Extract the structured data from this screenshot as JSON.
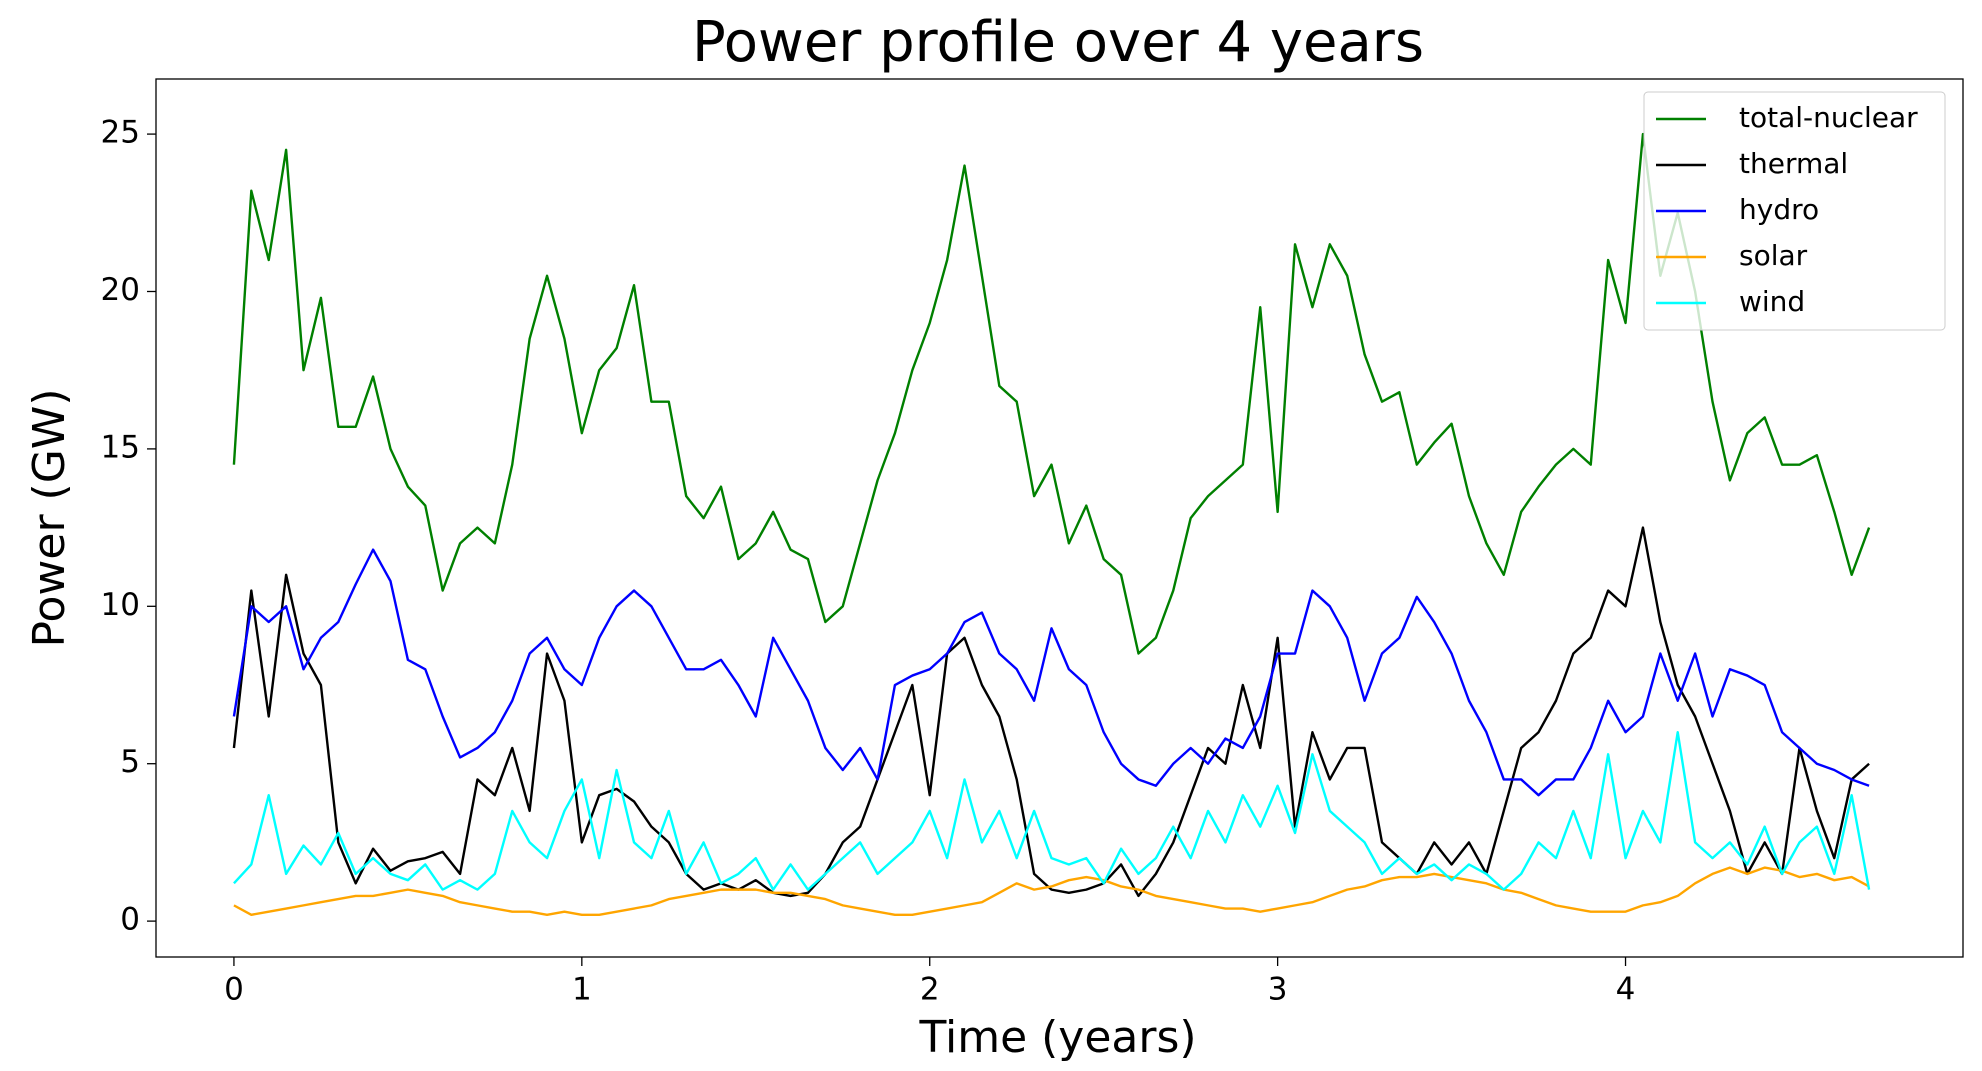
{
  "chart_data": {
    "type": "line",
    "title": "Power profile over 4 years",
    "xlabel": "Time (years)",
    "ylabel": "Power (GW)",
    "xlim": [
      -0.224,
      4.97
    ],
    "ylim": [
      -1.14,
      26.75
    ],
    "xticks": [
      0,
      1,
      2,
      3,
      4
    ],
    "yticks": [
      0,
      5,
      10,
      15,
      20,
      25
    ],
    "legend": "upper right",
    "x": [
      0,
      0.05,
      0.1,
      0.15,
      0.2,
      0.25,
      0.3,
      0.35,
      0.4,
      0.45,
      0.5,
      0.55,
      0.6,
      0.65,
      0.7,
      0.75,
      0.8,
      0.85,
      0.9,
      0.95,
      1,
      1.05,
      1.1,
      1.15,
      1.2,
      1.25,
      1.3,
      1.35,
      1.4,
      1.45,
      1.5,
      1.55,
      1.6,
      1.65,
      1.7,
      1.75,
      1.8,
      1.85,
      1.9,
      1.95,
      2,
      2.05,
      2.1,
      2.15,
      2.2,
      2.25,
      2.3,
      2.35,
      2.4,
      2.45,
      2.5,
      2.55,
      2.6,
      2.65,
      2.7,
      2.75,
      2.8,
      2.85,
      2.9,
      2.95,
      3,
      3.05,
      3.1,
      3.15,
      3.2,
      3.25,
      3.3,
      3.35,
      3.4,
      3.45,
      3.5,
      3.55,
      3.6,
      3.65,
      3.7,
      3.75,
      3.8,
      3.85,
      3.9,
      3.95,
      4,
      4.05,
      4.1,
      4.15,
      4.2,
      4.25,
      4.3,
      4.35,
      4.4,
      4.45,
      4.5,
      4.55,
      4.6,
      4.65,
      4.7
    ],
    "series": [
      {
        "name": "total-nuclear",
        "color": "#008000",
        "values": [
          14.5,
          23.2,
          21,
          24.5,
          17.5,
          19.8,
          15.7,
          15.7,
          17.3,
          15,
          13.8,
          13.2,
          10.5,
          12,
          12.5,
          12,
          14.5,
          18.5,
          20.5,
          18.5,
          15.5,
          17.5,
          18.2,
          20.2,
          16.5,
          16.5,
          13.5,
          12.8,
          13.8,
          11.5,
          12,
          13,
          11.8,
          11.5,
          9.5,
          10,
          12,
          14,
          15.5,
          17.5,
          19,
          21,
          24,
          20.5,
          17,
          16.5,
          13.5,
          14.5,
          12,
          13.2,
          11.5,
          11,
          8.5,
          9,
          10.5,
          12.8,
          13.5,
          14,
          14.5,
          19.5,
          13,
          21.5,
          19.5,
          21.5,
          20.5,
          18,
          16.5,
          16.8,
          14.5,
          15.2,
          15.8,
          13.5,
          12,
          11,
          13,
          13.8,
          14.5,
          15,
          14.5,
          21,
          19,
          25,
          20.5,
          22.5,
          20,
          16.5,
          14,
          15.5,
          16,
          14.5,
          14.5,
          14.8,
          13,
          11,
          12.5
        ]
      },
      {
        "name": "thermal",
        "color": "#000000",
        "values": [
          5.5,
          10.5,
          6.5,
          11,
          8.5,
          7.5,
          2.5,
          1.2,
          2.3,
          1.6,
          1.9,
          2,
          2.2,
          1.5,
          4.5,
          4,
          5.5,
          3.5,
          8.5,
          7,
          2.5,
          4,
          4.2,
          3.8,
          3,
          2.5,
          1.5,
          1,
          1.2,
          1,
          1.3,
          0.9,
          0.8,
          0.9,
          1.5,
          2.5,
          3,
          4.5,
          6,
          7.5,
          4,
          8.5,
          9,
          7.5,
          6.5,
          4.5,
          1.5,
          1,
          0.9,
          1,
          1.2,
          1.8,
          0.8,
          1.5,
          2.5,
          4,
          5.5,
          5,
          7.5,
          5.5,
          9,
          3,
          6,
          4.5,
          5.5,
          5.5,
          2.5,
          2,
          1.5,
          2.5,
          1.8,
          2.5,
          1.5,
          3.5,
          5.5,
          6,
          7,
          8.5,
          9,
          10.5,
          10,
          12.5,
          9.5,
          7.5,
          6.5,
          5,
          3.5,
          1.5,
          2.5,
          1.5,
          5.5,
          3.5,
          2,
          4.5,
          5
        ]
      },
      {
        "name": "hydro",
        "color": "#0000ff",
        "values": [
          6.5,
          10,
          9.5,
          10,
          8,
          9,
          9.5,
          10.7,
          11.8,
          10.8,
          8.3,
          8,
          6.5,
          5.2,
          5.5,
          6,
          7,
          8.5,
          9,
          8,
          7.5,
          9,
          10,
          10.5,
          10,
          9,
          8,
          8,
          8.3,
          7.5,
          6.5,
          9,
          8,
          7,
          5.5,
          4.8,
          5.5,
          4.5,
          7.5,
          7.8,
          8,
          8.5,
          9.5,
          9.8,
          8.5,
          8,
          7,
          9.3,
          8,
          7.5,
          6,
          5,
          4.5,
          4.3,
          5,
          5.5,
          5,
          5.8,
          5.5,
          6.5,
          8.5,
          8.5,
          10.5,
          10,
          9,
          7,
          8.5,
          9,
          10.3,
          9.5,
          8.5,
          7,
          6,
          4.5,
          4.5,
          4,
          4.5,
          4.5,
          5.5,
          7,
          6,
          6.5,
          8.5,
          7,
          8.5,
          6.5,
          8,
          7.8,
          7.5,
          6,
          5.5,
          5,
          4.8,
          4.5,
          4.3
        ]
      },
      {
        "name": "solar",
        "color": "#ffa500",
        "values": [
          0.5,
          0.2,
          0.3,
          0.4,
          0.5,
          0.6,
          0.7,
          0.8,
          0.8,
          0.9,
          1,
          0.9,
          0.8,
          0.6,
          0.5,
          0.4,
          0.3,
          0.3,
          0.2,
          0.3,
          0.2,
          0.2,
          0.3,
          0.4,
          0.5,
          0.7,
          0.8,
          0.9,
          1,
          1,
          1,
          0.9,
          0.9,
          0.8,
          0.7,
          0.5,
          0.4,
          0.3,
          0.2,
          0.2,
          0.3,
          0.4,
          0.5,
          0.6,
          0.9,
          1.2,
          1,
          1.1,
          1.3,
          1.4,
          1.3,
          1.1,
          1,
          0.8,
          0.7,
          0.6,
          0.5,
          0.4,
          0.4,
          0.3,
          0.4,
          0.5,
          0.6,
          0.8,
          1,
          1.1,
          1.3,
          1.4,
          1.4,
          1.5,
          1.4,
          1.3,
          1.2,
          1,
          0.9,
          0.7,
          0.5,
          0.4,
          0.3,
          0.3,
          0.3,
          0.5,
          0.6,
          0.8,
          1.2,
          1.5,
          1.7,
          1.5,
          1.7,
          1.6,
          1.4,
          1.5,
          1.3,
          1.4,
          1.1
        ]
      },
      {
        "name": "wind",
        "color": "#00ffff",
        "values": [
          1.2,
          1.8,
          4,
          1.5,
          2.4,
          1.8,
          2.8,
          1.5,
          2,
          1.5,
          1.3,
          1.8,
          1,
          1.3,
          1,
          1.5,
          3.5,
          2.5,
          2,
          3.5,
          4.5,
          2,
          4.8,
          2.5,
          2,
          3.5,
          1.5,
          2.5,
          1.2,
          1.5,
          2,
          1,
          1.8,
          1,
          1.5,
          2,
          2.5,
          1.5,
          2,
          2.5,
          3.5,
          2,
          4.5,
          2.5,
          3.5,
          2,
          3.5,
          2,
          1.8,
          2,
          1.2,
          2.3,
          1.5,
          2,
          3,
          2,
          3.5,
          2.5,
          4,
          3,
          4.3,
          2.8,
          5.3,
          3.5,
          3,
          2.5,
          1.5,
          2,
          1.5,
          1.8,
          1.3,
          1.8,
          1.5,
          1,
          1.5,
          2.5,
          2,
          3.5,
          2,
          5.3,
          2,
          3.5,
          2.5,
          6,
          2.5,
          2,
          2.5,
          1.8,
          3,
          1.5,
          2.5,
          3,
          1.5,
          4,
          1
        ]
      }
    ]
  }
}
